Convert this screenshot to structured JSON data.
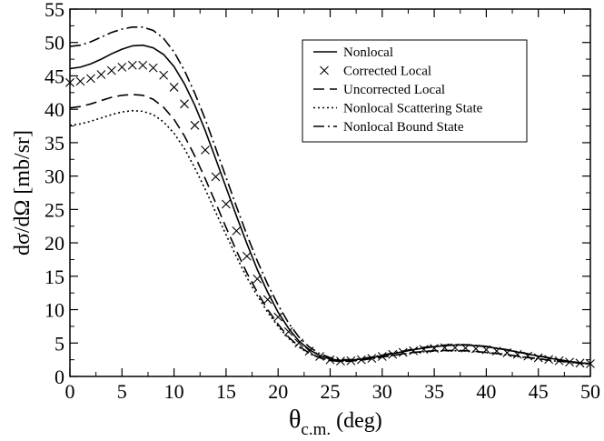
{
  "chart_data": {
    "type": "line",
    "ylabel": "dσ/dΩ [mb/sr]",
    "xlabel": {
      "main": "θ",
      "sub": "c.m.",
      "unit": "(deg)"
    },
    "xlim": [
      0,
      50
    ],
    "ylim": [
      0,
      55
    ],
    "x_ticks": [
      0,
      5,
      10,
      15,
      20,
      25,
      30,
      35,
      40,
      45,
      50
    ],
    "y_ticks": [
      0,
      5,
      10,
      15,
      20,
      25,
      30,
      35,
      40,
      45,
      50,
      55
    ],
    "legend_position": "top-right",
    "grid": false,
    "series": [
      {
        "name": "Nonlocal",
        "style": "solid",
        "points": [
          [
            0,
            46.1
          ],
          [
            1,
            46.3
          ],
          [
            2,
            46.8
          ],
          [
            3,
            47.5
          ],
          [
            4,
            48.3
          ],
          [
            5,
            49.0
          ],
          [
            6,
            49.5
          ],
          [
            7,
            49.6
          ],
          [
            8,
            49.2
          ],
          [
            9,
            48.2
          ],
          [
            10,
            46.4
          ],
          [
            11,
            43.8
          ],
          [
            12,
            40.6
          ],
          [
            13,
            36.8
          ],
          [
            14,
            32.6
          ],
          [
            15,
            28.3
          ],
          [
            16,
            24.0
          ],
          [
            17,
            19.9
          ],
          [
            18,
            16.0
          ],
          [
            19,
            12.6
          ],
          [
            20,
            9.6
          ],
          [
            21,
            7.2
          ],
          [
            22,
            5.3
          ],
          [
            23,
            4.0
          ],
          [
            24,
            3.1
          ],
          [
            25,
            2.6
          ],
          [
            26,
            2.4
          ],
          [
            27,
            2.45
          ],
          [
            28,
            2.6
          ],
          [
            29,
            2.8
          ],
          [
            30,
            3.1
          ],
          [
            31,
            3.4
          ],
          [
            32,
            3.7
          ],
          [
            33,
            4.0
          ],
          [
            34,
            4.25
          ],
          [
            35,
            4.45
          ],
          [
            36,
            4.6
          ],
          [
            37,
            4.7
          ],
          [
            38,
            4.7
          ],
          [
            39,
            4.6
          ],
          [
            40,
            4.45
          ],
          [
            41,
            4.2
          ],
          [
            42,
            3.95
          ],
          [
            43,
            3.65
          ],
          [
            44,
            3.35
          ],
          [
            45,
            3.05
          ],
          [
            46,
            2.75
          ],
          [
            47,
            2.5
          ],
          [
            48,
            2.25
          ],
          [
            49,
            2.05
          ],
          [
            50,
            1.9
          ]
        ]
      },
      {
        "name": "Corrected Local",
        "style": "x-markers",
        "points": [
          [
            0,
            44.0
          ],
          [
            1,
            44.2
          ],
          [
            2,
            44.6
          ],
          [
            3,
            45.2
          ],
          [
            4,
            45.8
          ],
          [
            5,
            46.3
          ],
          [
            6,
            46.6
          ],
          [
            7,
            46.6
          ],
          [
            8,
            46.2
          ],
          [
            9,
            45.1
          ],
          [
            10,
            43.3
          ],
          [
            11,
            40.8
          ],
          [
            12,
            37.6
          ],
          [
            13,
            33.9
          ],
          [
            14,
            29.9
          ],
          [
            15,
            25.8
          ],
          [
            16,
            21.8
          ],
          [
            17,
            18.0
          ],
          [
            18,
            14.6
          ],
          [
            19,
            11.5
          ],
          [
            20,
            8.9
          ],
          [
            21,
            6.7
          ],
          [
            22,
            5.0
          ],
          [
            23,
            3.8
          ],
          [
            24,
            3.0
          ],
          [
            25,
            2.5
          ],
          [
            26,
            2.3
          ],
          [
            27,
            2.35
          ],
          [
            28,
            2.5
          ],
          [
            29,
            2.7
          ],
          [
            30,
            3.0
          ],
          [
            31,
            3.3
          ],
          [
            32,
            3.6
          ],
          [
            33,
            3.85
          ],
          [
            34,
            4.05
          ],
          [
            35,
            4.2
          ],
          [
            36,
            4.3
          ],
          [
            37,
            4.3
          ],
          [
            38,
            4.25
          ],
          [
            39,
            4.15
          ],
          [
            40,
            4.0
          ],
          [
            41,
            3.8
          ],
          [
            42,
            3.55
          ],
          [
            43,
            3.3
          ],
          [
            44,
            3.05
          ],
          [
            45,
            2.8
          ],
          [
            46,
            2.55
          ],
          [
            47,
            2.35
          ],
          [
            48,
            2.15
          ],
          [
            49,
            2.0
          ],
          [
            50,
            1.9
          ]
        ]
      },
      {
        "name": "Uncorrected Local",
        "style": "dashed",
        "points": [
          [
            0,
            40.2
          ],
          [
            1,
            40.4
          ],
          [
            2,
            40.8
          ],
          [
            3,
            41.3
          ],
          [
            4,
            41.8
          ],
          [
            5,
            42.1
          ],
          [
            6,
            42.2
          ],
          [
            7,
            42.1
          ],
          [
            8,
            41.5
          ],
          [
            9,
            40.3
          ],
          [
            10,
            38.5
          ],
          [
            11,
            36.0
          ],
          [
            12,
            33.0
          ],
          [
            13,
            29.6
          ],
          [
            14,
            26.0
          ],
          [
            15,
            22.3
          ],
          [
            16,
            18.8
          ],
          [
            17,
            15.5
          ],
          [
            18,
            12.6
          ],
          [
            19,
            10.0
          ],
          [
            20,
            7.8
          ],
          [
            21,
            5.9
          ],
          [
            22,
            4.5
          ],
          [
            23,
            3.5
          ],
          [
            24,
            2.8
          ],
          [
            25,
            2.4
          ],
          [
            26,
            2.25
          ],
          [
            27,
            2.3
          ],
          [
            28,
            2.45
          ],
          [
            29,
            2.65
          ],
          [
            30,
            2.9
          ],
          [
            31,
            3.15
          ],
          [
            32,
            3.4
          ],
          [
            33,
            3.6
          ],
          [
            34,
            3.75
          ],
          [
            35,
            3.85
          ],
          [
            36,
            3.9
          ],
          [
            37,
            3.9
          ],
          [
            38,
            3.85
          ],
          [
            39,
            3.75
          ],
          [
            40,
            3.6
          ],
          [
            41,
            3.45
          ],
          [
            42,
            3.25
          ],
          [
            43,
            3.05
          ],
          [
            44,
            2.85
          ],
          [
            45,
            2.65
          ],
          [
            46,
            2.45
          ],
          [
            47,
            2.3
          ],
          [
            48,
            2.15
          ],
          [
            49,
            2.0
          ],
          [
            50,
            1.9
          ]
        ]
      },
      {
        "name": "Nonlocal Scattering State",
        "style": "dotted",
        "points": [
          [
            0,
            37.6
          ],
          [
            1,
            37.8
          ],
          [
            2,
            38.2
          ],
          [
            3,
            38.7
          ],
          [
            4,
            39.2
          ],
          [
            5,
            39.6
          ],
          [
            6,
            39.8
          ],
          [
            7,
            39.7
          ],
          [
            8,
            39.2
          ],
          [
            9,
            38.1
          ],
          [
            10,
            36.4
          ],
          [
            11,
            34.1
          ],
          [
            12,
            31.2
          ],
          [
            13,
            28.0
          ],
          [
            14,
            24.6
          ],
          [
            15,
            21.2
          ],
          [
            16,
            17.9
          ],
          [
            17,
            14.8
          ],
          [
            18,
            12.1
          ],
          [
            19,
            9.6
          ],
          [
            20,
            7.5
          ],
          [
            21,
            5.7
          ],
          [
            22,
            4.4
          ],
          [
            23,
            3.4
          ],
          [
            24,
            2.8
          ],
          [
            25,
            2.4
          ],
          [
            26,
            2.25
          ],
          [
            27,
            2.3
          ],
          [
            28,
            2.45
          ],
          [
            29,
            2.65
          ],
          [
            30,
            2.9
          ],
          [
            31,
            3.15
          ],
          [
            32,
            3.35
          ],
          [
            33,
            3.55
          ],
          [
            34,
            3.7
          ],
          [
            35,
            3.8
          ],
          [
            36,
            3.85
          ],
          [
            37,
            3.85
          ],
          [
            38,
            3.8
          ],
          [
            39,
            3.7
          ],
          [
            40,
            3.55
          ],
          [
            41,
            3.4
          ],
          [
            42,
            3.2
          ],
          [
            43,
            3.0
          ],
          [
            44,
            2.8
          ],
          [
            45,
            2.6
          ],
          [
            46,
            2.4
          ],
          [
            47,
            2.25
          ],
          [
            48,
            2.1
          ],
          [
            49,
            1.95
          ],
          [
            50,
            1.85
          ]
        ]
      },
      {
        "name": "Nonlocal Bound State",
        "style": "dash-dot",
        "points": [
          [
            0,
            49.4
          ],
          [
            1,
            49.6
          ],
          [
            2,
            50.1
          ],
          [
            3,
            50.8
          ],
          [
            4,
            51.5
          ],
          [
            5,
            52.0
          ],
          [
            6,
            52.3
          ],
          [
            7,
            52.3
          ],
          [
            8,
            51.8
          ],
          [
            9,
            50.6
          ],
          [
            10,
            48.6
          ],
          [
            11,
            45.8
          ],
          [
            12,
            42.4
          ],
          [
            13,
            38.5
          ],
          [
            14,
            34.2
          ],
          [
            15,
            29.8
          ],
          [
            16,
            25.4
          ],
          [
            17,
            21.2
          ],
          [
            18,
            17.3
          ],
          [
            19,
            13.8
          ],
          [
            20,
            10.7
          ],
          [
            21,
            8.0
          ],
          [
            22,
            5.9
          ],
          [
            23,
            4.4
          ],
          [
            24,
            3.4
          ],
          [
            25,
            2.8
          ],
          [
            26,
            2.5
          ],
          [
            27,
            2.5
          ],
          [
            28,
            2.65
          ],
          [
            29,
            2.9
          ],
          [
            30,
            3.2
          ],
          [
            31,
            3.5
          ],
          [
            32,
            3.8
          ],
          [
            33,
            4.1
          ],
          [
            34,
            4.35
          ],
          [
            35,
            4.55
          ],
          [
            36,
            4.7
          ],
          [
            37,
            4.75
          ],
          [
            38,
            4.75
          ],
          [
            39,
            4.65
          ],
          [
            40,
            4.5
          ],
          [
            41,
            4.25
          ],
          [
            42,
            4.0
          ],
          [
            43,
            3.7
          ],
          [
            44,
            3.4
          ],
          [
            45,
            3.1
          ],
          [
            46,
            2.8
          ],
          [
            47,
            2.5
          ],
          [
            48,
            2.25
          ],
          [
            49,
            2.05
          ],
          [
            50,
            1.9
          ]
        ]
      }
    ]
  }
}
